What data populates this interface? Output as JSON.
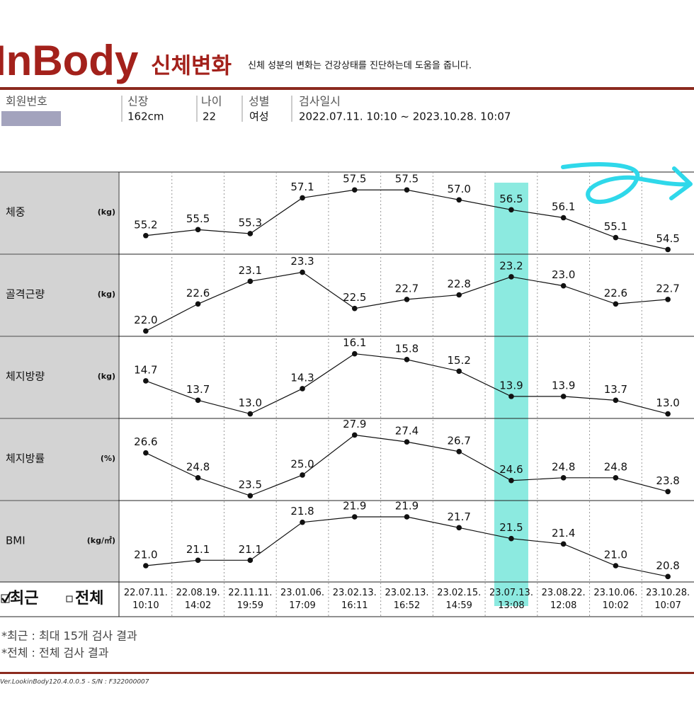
{
  "header": {
    "logo": "InBody",
    "title": "신체변화",
    "subtitle": "신체 성분의 변화는 건강상태를 진단하는데 도움을 줍니다."
  },
  "info": {
    "member_label": "회원번호",
    "height_label": "신장",
    "height": "162cm",
    "age_label": "나이",
    "age": "22",
    "sex_label": "성별",
    "sex": "여성",
    "date_label": "검사일시",
    "date_range": "2022.07.11. 10:10 ~ 2023.10.28. 10:07"
  },
  "highlight": {
    "index": 7,
    "color": "#7fe8dd"
  },
  "chart_data": [
    {
      "type": "line",
      "title": "체중",
      "unit": "(kg)",
      "ylim": [
        54.3,
        58.4
      ],
      "values": [
        55.2,
        55.5,
        55.3,
        57.1,
        57.5,
        57.5,
        57.0,
        56.5,
        56.1,
        55.1,
        54.5
      ],
      "value_labels": [
        "55.2",
        "55.5",
        "55.3",
        "57.1",
        "57.5",
        "57.5",
        "57.0",
        "56.5",
        "56.1",
        "55.1",
        "54.5"
      ]
    },
    {
      "type": "line",
      "title": "골격근량",
      "unit": "(kg)",
      "ylim": [
        21.9,
        23.7
      ],
      "values": [
        22.0,
        22.6,
        23.1,
        23.3,
        22.5,
        22.7,
        22.8,
        23.2,
        23.0,
        22.6,
        22.7
      ],
      "value_labels": [
        "22.0",
        "22.6",
        "23.1",
        "23.3",
        "22.5",
        "22.7",
        "22.8",
        "23.2",
        "23.0",
        "22.6",
        "22.7"
      ]
    },
    {
      "type": "line",
      "title": "체지방량",
      "unit": "(kg)",
      "ylim": [
        12.8,
        17.0
      ],
      "values": [
        14.7,
        13.7,
        13.0,
        14.3,
        16.1,
        15.8,
        15.2,
        13.9,
        13.9,
        13.7,
        13.0
      ],
      "value_labels": [
        "14.7",
        "13.7",
        "13.0",
        "14.3",
        "16.1",
        "15.8",
        "15.2",
        "13.9",
        "13.9",
        "13.7",
        "13.0"
      ]
    },
    {
      "type": "line",
      "title": "체지방률",
      "unit": "(%)",
      "ylim": [
        23.2,
        29.1
      ],
      "values": [
        26.6,
        24.8,
        23.5,
        25.0,
        27.9,
        27.4,
        26.7,
        24.6,
        24.8,
        24.8,
        23.8
      ],
      "value_labels": [
        "26.6",
        "24.8",
        "23.5",
        "25.0",
        "27.9",
        "27.4",
        "26.7",
        "24.6",
        "24.8",
        "24.8",
        "23.8"
      ]
    },
    {
      "type": "line",
      "title": "BMI",
      "unit": "(kg/㎡)",
      "ylim": [
        20.7,
        22.2
      ],
      "values": [
        21.0,
        21.1,
        21.1,
        21.8,
        21.9,
        21.9,
        21.7,
        21.5,
        21.4,
        21.0,
        20.8
      ],
      "value_labels": [
        "21.0",
        "21.1",
        "21.1",
        "21.8",
        "21.9",
        "21.9",
        "21.7",
        "21.5",
        "21.4",
        "21.0",
        "20.8"
      ],
      "categories": [
        "22.07.11.\n10:10",
        "22.08.19.\n14:02",
        "22.11.11.\n19:59",
        "23.01.06.\n17:09",
        "23.02.13.\n16:11",
        "23.02.13.\n16:52",
        "23.02.15.\n14:59",
        "23.07.13.\n13:08",
        "23.08.22.\n12:08",
        "23.10.06.\n10:02",
        "23.10.28.\n10:07"
      ]
    }
  ],
  "filter": {
    "options": [
      {
        "label": "최근",
        "checked": true
      },
      {
        "label": "전체",
        "checked": false
      }
    ],
    "notes": [
      "*최근 : 최대 15개 검사 결과",
      "*전체 : 전체 검사 결과"
    ]
  },
  "footer": {
    "version": "Ver.LookinBody120.4.0.0.5 - S/N : F322000007"
  }
}
